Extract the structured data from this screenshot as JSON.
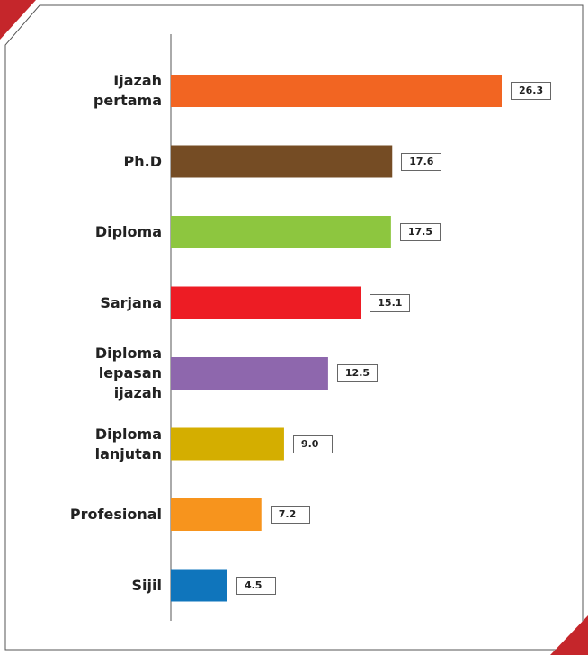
{
  "chart_data": {
    "type": "bar",
    "orientation": "horizontal",
    "categories": [
      "Ijazah pertama",
      "Ph.D",
      "Diploma",
      "Sarjana",
      "Diploma lepasan ijazah",
      "Diploma lanjutan",
      "Profesional",
      "Sijil"
    ],
    "values": [
      26.3,
      17.6,
      17.5,
      15.1,
      12.5,
      9.0,
      7.2,
      4.5
    ],
    "value_labels": [
      "26.3",
      "17.6",
      "17.5",
      "15.1",
      "12.5",
      "9.0",
      "7.2",
      "4.5"
    ],
    "colors": [
      "#f26522",
      "#754c24",
      "#8dc63f",
      "#ed1c24",
      "#8e67ad",
      "#d4ae00",
      "#f7941d",
      "#0f75bc"
    ]
  }
}
